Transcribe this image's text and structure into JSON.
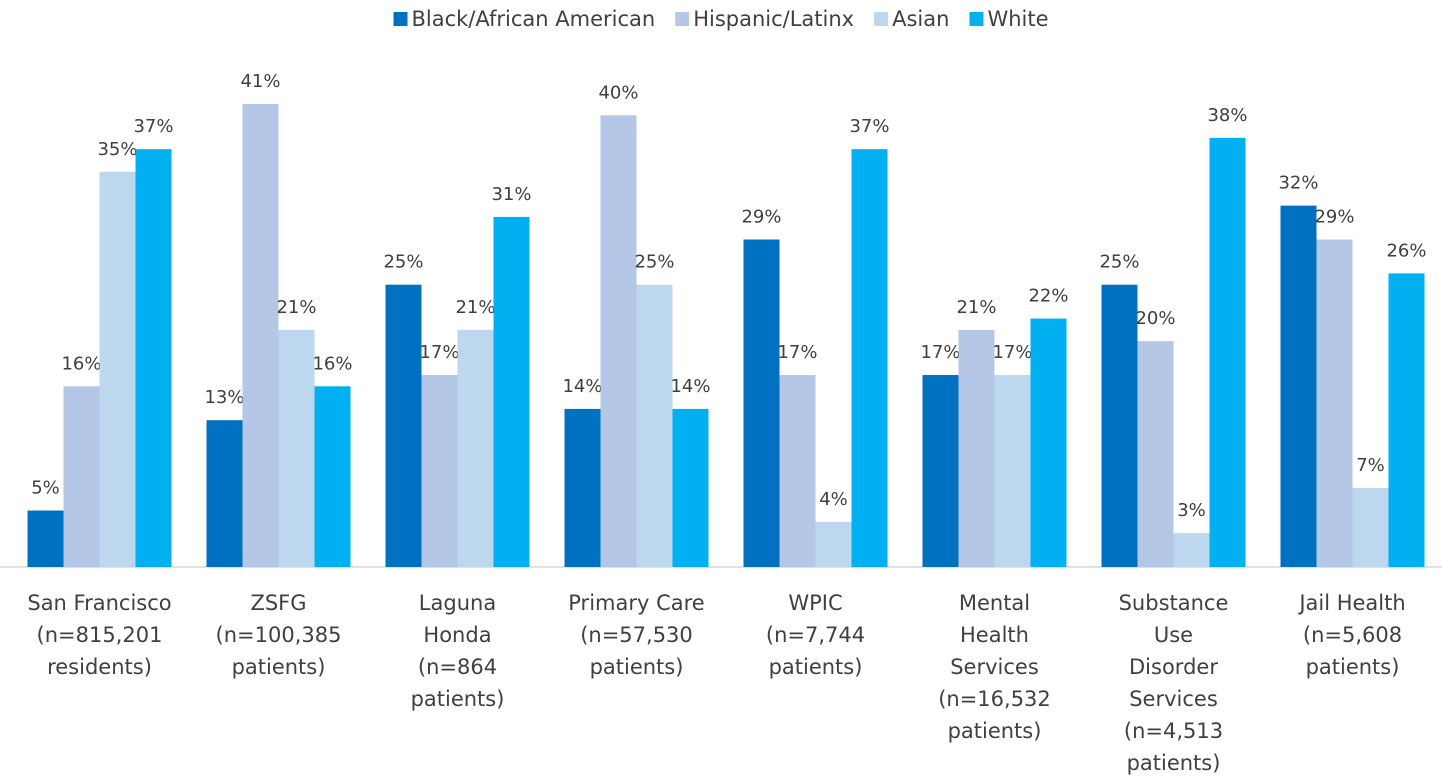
{
  "chart_data": {
    "type": "bar",
    "categories": [
      [
        "San Francisco",
        "(n=815,201",
        "residents)"
      ],
      [
        "ZSFG",
        "(n=100,385",
        "patients)"
      ],
      [
        "Laguna",
        "Honda",
        "(n=864",
        "patients)"
      ],
      [
        "Primary Care",
        "(n=57,530",
        "patients)"
      ],
      [
        "WPIC",
        "(n=7,744",
        "patients)"
      ],
      [
        "Mental",
        "Health",
        "Services",
        "(n=16,532",
        "patients)"
      ],
      [
        "Substance",
        "Use",
        "Disorder",
        "Services",
        "(n=4,513",
        "patients)"
      ],
      [
        "Jail Health",
        "(n=5,608",
        "patients)"
      ]
    ],
    "series": [
      {
        "name": "Black/African American",
        "color": "#0070c0",
        "values": [
          5,
          13,
          25,
          14,
          29,
          17,
          25,
          32
        ],
        "value_labels": [
          "5%",
          "13%",
          "25%",
          "14%",
          "29%",
          "17%",
          "25%",
          "32%"
        ]
      },
      {
        "name": "Hispanic/Latinx",
        "color": "#b4c7e7",
        "values": [
          16,
          41,
          17,
          40,
          17,
          21,
          20,
          29
        ],
        "value_labels": [
          "16%",
          "41%",
          "17%",
          "40%",
          "17%",
          "21%",
          "20%",
          "29%"
        ]
      },
      {
        "name": "Asian",
        "color": "#bdd7ee",
        "values": [
          35,
          21,
          21,
          25,
          4,
          17,
          3,
          7
        ],
        "value_labels": [
          "35%",
          "21%",
          "21%",
          "25%",
          "4%",
          "17%",
          "3%",
          "7%"
        ]
      },
      {
        "name": "White",
        "color": "#00b0f0",
        "values": [
          37,
          16,
          31,
          14,
          37,
          22,
          38,
          26
        ],
        "value_labels": [
          "37%",
          "16%",
          "31%",
          "14%",
          "37%",
          "22%",
          "38%",
          "26%"
        ]
      }
    ],
    "legend": "top"
  }
}
